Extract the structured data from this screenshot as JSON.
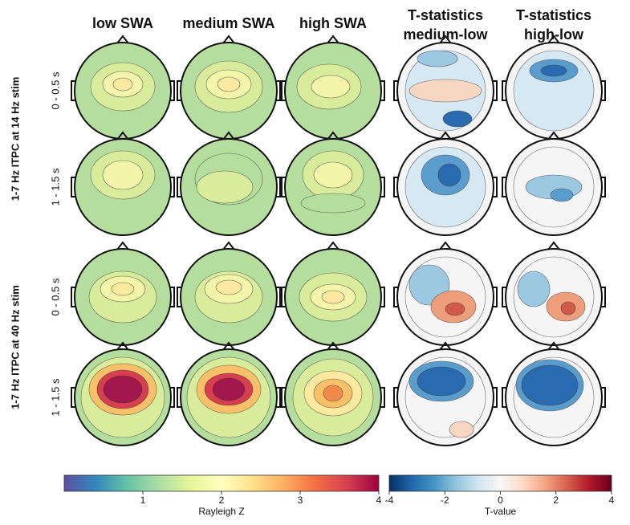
{
  "columns": [
    "low SWA",
    "medium SWA",
    "high SWA",
    [
      "T-statistics",
      "medium-low"
    ],
    [
      "T-statistics",
      "high-low"
    ]
  ],
  "groups": [
    {
      "label": "1-7 Hz ITPC at 14 Hz stim",
      "rows": [
        "0 - 0.5 s",
        "1 - 1.5 s"
      ]
    },
    {
      "label": "1-7 Hz ITPC at 40 Hz stim",
      "rows": [
        "0 - 0.5 s",
        "1 - 1.5 s"
      ]
    }
  ],
  "colorbars": [
    {
      "label": "Rayleigh Z",
      "lim": [
        0,
        4
      ],
      "ticks": [
        1,
        2,
        3,
        4
      ],
      "colors": [
        "#5e4fa2",
        "#3288bd",
        "#66c2a5",
        "#abdda4",
        "#e6f598",
        "#ffffbf",
        "#fee08b",
        "#fdae61",
        "#f46d43",
        "#d53e4f",
        "#9e0142"
      ]
    },
    {
      "label": "T-value",
      "lim": [
        -4,
        4
      ],
      "ticks": [
        -4,
        -2,
        0,
        2,
        4
      ],
      "colors": [
        "#053061",
        "#2166ac",
        "#4393c3",
        "#92c5de",
        "#d1e5f0",
        "#f7f7f7",
        "#fddbc7",
        "#f4a582",
        "#d6604d",
        "#b2182b",
        "#67001f"
      ]
    }
  ]
}
